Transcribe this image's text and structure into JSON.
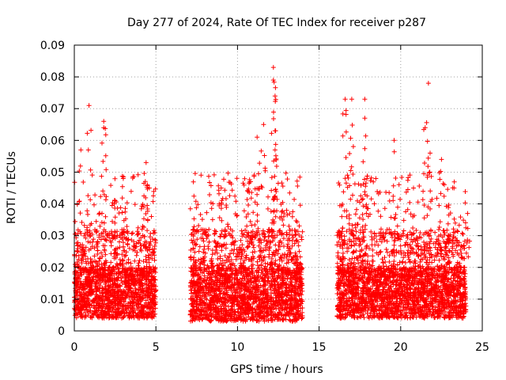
{
  "chart_data": {
    "type": "scatter",
    "title": "Day 277 of 2024, Rate Of TEC Index for receiver p287",
    "xlabel": "GPS time / hours",
    "ylabel": "ROTI / TECUs",
    "xlim": [
      0,
      25
    ],
    "ylim": [
      0,
      0.09
    ],
    "x_ticks": [
      0,
      5,
      10,
      15,
      20,
      25
    ],
    "x_tick_labels": [
      "0",
      "5",
      "10",
      "15",
      "20",
      "25"
    ],
    "y_ticks": [
      0,
      0.01,
      0.02,
      0.03,
      0.04,
      0.05,
      0.06,
      0.07,
      0.08,
      0.09
    ],
    "y_tick_labels": [
      "0",
      "0.01",
      "0.02",
      "0.03",
      "0.04",
      "0.05",
      "0.06",
      "0.07",
      "0.08",
      "0.09"
    ],
    "grid": true,
    "marker": "+",
    "color": "#ff0000",
    "series": [
      {
        "name": "ROTI",
        "segments": [
          {
            "x_start": 0.0,
            "x_end": 5.0,
            "typical_range": [
              0.004,
              0.02
            ],
            "peaks": [
              [
                0.4,
                0.057
              ],
              [
                0.9,
                0.071
              ],
              [
                1.8,
                0.066
              ],
              [
                1.8,
                0.064
              ],
              [
                2.5,
                0.041
              ],
              [
                3.0,
                0.048
              ],
              [
                4.4,
                0.053
              ],
              [
                4.6,
                0.045
              ]
            ]
          },
          {
            "x_start": 7.1,
            "x_end": 14.0,
            "typical_range": [
              0.003,
              0.02
            ],
            "peaks": [
              [
                9.0,
                0.045
              ],
              [
                10.8,
                0.047
              ],
              [
                11.2,
                0.061
              ],
              [
                11.6,
                0.065
              ],
              [
                12.2,
                0.083
              ],
              [
                12.2,
                0.079
              ],
              [
                12.3,
                0.074
              ],
              [
                12.3,
                0.063
              ],
              [
                12.3,
                0.057
              ]
            ]
          },
          {
            "x_start": 16.1,
            "x_end": 24.0,
            "typical_range": [
              0.004,
              0.02
            ],
            "peaks": [
              [
                16.6,
                0.073
              ],
              [
                17.0,
                0.073
              ],
              [
                17.8,
                0.073
              ],
              [
                17.8,
                0.067
              ],
              [
                19.6,
                0.06
              ],
              [
                21.5,
                0.064
              ],
              [
                21.7,
                0.078
              ],
              [
                21.8,
                0.056
              ],
              [
                22.5,
                0.054
              ],
              [
                24.1,
                0.037
              ]
            ]
          }
        ]
      }
    ]
  }
}
